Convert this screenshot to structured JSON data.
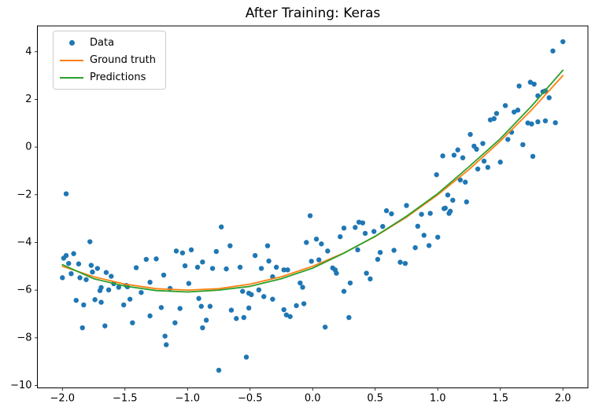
{
  "title": "After Training: Keras",
  "legend": {
    "position": "upper left",
    "items": [
      {
        "label": "Data",
        "type": "marker",
        "color": "#1f77b4"
      },
      {
        "label": "Ground truth",
        "type": "line",
        "color": "#ff7f0e"
      },
      {
        "label": "Predictions",
        "type": "line",
        "color": "#2ca02c"
      }
    ]
  },
  "chart_data": {
    "type": "scatter+line",
    "title": "After Training: Keras",
    "xlabel": "",
    "ylabel": "",
    "grid": false,
    "legend_position": "upper left",
    "axes": {
      "xlim": [
        -2.2,
        2.2
      ],
      "ylim": [
        -10.1,
        5.08
      ],
      "x_tick_values": [
        -2.0,
        -1.5,
        -1.0,
        -0.5,
        0.0,
        0.5,
        1.0,
        1.5,
        2.0
      ],
      "x_tick_labels": [
        "−2.0",
        "−1.5",
        "−1.0",
        "−0.5",
        "0.0",
        "0.5",
        "1.0",
        "1.5",
        "2.0"
      ],
      "y_tick_values": [
        -10,
        -8,
        -6,
        -4,
        -2,
        0,
        2,
        4
      ],
      "y_tick_labels": [
        "−10",
        "−8",
        "−6",
        "−4",
        "−2",
        "0",
        "2",
        "4"
      ]
    },
    "series": [
      {
        "name": "Data",
        "kind": "scatter",
        "color": "#1f77b4",
        "marker_radius": 3.2,
        "points": [
          [
            -1.97,
            -1.96
          ],
          [
            -1.99,
            -4.66
          ],
          [
            -1.97,
            -4.55
          ],
          [
            -1.95,
            -4.88
          ],
          [
            -1.91,
            -4.47
          ],
          [
            -2.0,
            -5.48
          ],
          [
            -1.93,
            -5.31
          ],
          [
            -1.87,
            -4.9
          ],
          [
            -1.86,
            -5.48
          ],
          [
            -1.89,
            -6.43
          ],
          [
            -1.84,
            -7.58
          ],
          [
            -1.83,
            -6.62
          ],
          [
            -1.81,
            -5.56
          ],
          [
            -1.78,
            -3.97
          ],
          [
            -1.77,
            -4.96
          ],
          [
            -1.76,
            -5.24
          ],
          [
            -1.74,
            -6.4
          ],
          [
            -1.72,
            -5.09
          ],
          [
            -1.7,
            -6.02
          ],
          [
            -1.69,
            -6.51
          ],
          [
            -1.69,
            -5.89
          ],
          [
            -1.66,
            -7.5
          ],
          [
            -1.65,
            -5.26
          ],
          [
            -1.63,
            -5.99
          ],
          [
            -1.61,
            -5.42
          ],
          [
            -1.59,
            -5.73
          ],
          [
            -1.55,
            -5.88
          ],
          [
            -1.51,
            -6.62
          ],
          [
            -1.49,
            -5.8
          ],
          [
            -1.48,
            -5.86
          ],
          [
            -1.46,
            -6.38
          ],
          [
            -1.44,
            -7.37
          ],
          [
            -1.41,
            -5.06
          ],
          [
            -1.37,
            -6.1
          ],
          [
            -1.33,
            -4.71
          ],
          [
            -1.3,
            -5.67
          ],
          [
            -1.3,
            -7.08
          ],
          [
            -1.25,
            -4.69
          ],
          [
            -1.21,
            -6.73
          ],
          [
            -1.19,
            -5.37
          ],
          [
            -1.18,
            -7.93
          ],
          [
            -1.17,
            -8.29
          ],
          [
            -1.1,
            -7.37
          ],
          [
            -1.14,
            -5.93
          ],
          [
            -1.09,
            -4.36
          ],
          [
            -1.06,
            -6.77
          ],
          [
            -1.04,
            -4.44
          ],
          [
            -1.02,
            -4.98
          ],
          [
            -0.99,
            -5.72
          ],
          [
            -0.97,
            -4.31
          ],
          [
            -0.92,
            -5.04
          ],
          [
            -0.91,
            -6.35
          ],
          [
            -0.89,
            -6.68
          ],
          [
            -0.88,
            -4.82
          ],
          [
            -0.88,
            -7.58
          ],
          [
            -0.85,
            -7.26
          ],
          [
            -0.82,
            -6.68
          ],
          [
            -0.8,
            -5.09
          ],
          [
            -0.77,
            -4.38
          ],
          [
            -0.75,
            -9.36
          ],
          [
            -0.73,
            -3.35
          ],
          [
            -0.69,
            -5.11
          ],
          [
            -0.66,
            -4.14
          ],
          [
            -0.65,
            -6.84
          ],
          [
            -0.61,
            -7.19
          ],
          [
            -0.58,
            -5.04
          ],
          [
            -0.56,
            -6.05
          ],
          [
            -0.55,
            -7.15
          ],
          [
            -0.53,
            -8.81
          ],
          [
            -0.51,
            -6.13
          ],
          [
            -0.51,
            -6.75
          ],
          [
            -0.49,
            -6.19
          ],
          [
            -0.46,
            -4.55
          ],
          [
            -0.43,
            -5.99
          ],
          [
            -0.41,
            -5.09
          ],
          [
            -0.39,
            -6.27
          ],
          [
            -0.36,
            -4.14
          ],
          [
            -0.35,
            -4.78
          ],
          [
            -0.32,
            -5.44
          ],
          [
            -0.32,
            -6.38
          ],
          [
            -0.29,
            -5.04
          ],
          [
            -0.23,
            -5.15
          ],
          [
            -0.23,
            -6.82
          ],
          [
            -0.21,
            -7.04
          ],
          [
            -0.2,
            -5.15
          ],
          [
            -0.18,
            -7.11
          ],
          [
            -0.13,
            -6.65
          ],
          [
            -0.1,
            -5.7
          ],
          [
            -0.08,
            -5.88
          ],
          [
            -0.07,
            -6.57
          ],
          [
            -0.05,
            -4.0
          ],
          [
            -0.02,
            -2.88
          ],
          [
            -0.01,
            -4.79
          ],
          [
            0.03,
            -3.86
          ],
          [
            0.05,
            -4.73
          ],
          [
            0.07,
            -4.06
          ],
          [
            0.1,
            -7.55
          ],
          [
            0.12,
            -4.36
          ],
          [
            0.16,
            -5.07
          ],
          [
            0.18,
            -5.15
          ],
          [
            0.19,
            -5.29
          ],
          [
            0.22,
            -3.76
          ],
          [
            0.25,
            -3.4
          ],
          [
            0.25,
            -6.05
          ],
          [
            0.29,
            -7.15
          ],
          [
            0.3,
            -5.7
          ],
          [
            0.34,
            -3.37
          ],
          [
            0.36,
            -4.31
          ],
          [
            0.37,
            -3.15
          ],
          [
            0.4,
            -3.18
          ],
          [
            0.42,
            -3.62
          ],
          [
            0.43,
            -5.29
          ],
          [
            0.46,
            -5.53
          ],
          [
            0.49,
            -3.54
          ],
          [
            0.52,
            -4.71
          ],
          [
            0.54,
            -4.42
          ],
          [
            0.56,
            -3.33
          ],
          [
            0.59,
            -2.67
          ],
          [
            0.63,
            -2.8
          ],
          [
            0.65,
            -4.33
          ],
          [
            0.7,
            -4.83
          ],
          [
            0.74,
            -4.88
          ],
          [
            0.75,
            -2.45
          ],
          [
            0.82,
            -4.22
          ],
          [
            0.84,
            -3.32
          ],
          [
            0.87,
            -2.82
          ],
          [
            0.89,
            -3.7
          ],
          [
            0.93,
            -4.13
          ],
          [
            0.94,
            -2.78
          ],
          [
            0.99,
            -1.16
          ],
          [
            1.0,
            -3.78
          ],
          [
            1.04,
            -0.37
          ],
          [
            1.05,
            -2.58
          ],
          [
            1.06,
            -2.56
          ],
          [
            1.08,
            -2.01
          ],
          [
            1.09,
            -2.78
          ],
          [
            1.1,
            -2.69
          ],
          [
            1.12,
            -2.23
          ],
          [
            1.13,
            -0.34
          ],
          [
            1.16,
            -0.12
          ],
          [
            1.18,
            -1.38
          ],
          [
            1.2,
            -0.45
          ],
          [
            1.22,
            -1.47
          ],
          [
            1.23,
            -2.3
          ],
          [
            1.26,
            0.53
          ],
          [
            1.29,
            0.04
          ],
          [
            1.31,
            -0.09
          ],
          [
            1.32,
            -0.92
          ],
          [
            1.36,
            0.15
          ],
          [
            1.37,
            -0.59
          ],
          [
            1.4,
            -0.85
          ],
          [
            1.42,
            1.14
          ],
          [
            1.45,
            1.19
          ],
          [
            1.47,
            1.41
          ],
          [
            1.5,
            -0.63
          ],
          [
            1.54,
            1.74
          ],
          [
            1.56,
            0.32
          ],
          [
            1.59,
            0.62
          ],
          [
            1.61,
            1.47
          ],
          [
            1.64,
            1.55
          ],
          [
            1.65,
            2.56
          ],
          [
            1.68,
            0.1
          ],
          [
            1.72,
            1.01
          ],
          [
            1.74,
            2.72
          ],
          [
            1.75,
            0.97
          ],
          [
            1.76,
            -0.39
          ],
          [
            1.77,
            2.64
          ],
          [
            1.8,
            2.15
          ],
          [
            1.8,
            1.06
          ],
          [
            1.86,
            1.1
          ],
          [
            1.84,
            2.32
          ],
          [
            1.86,
            2.36
          ],
          [
            1.89,
            2.07
          ],
          [
            1.92,
            4.03
          ],
          [
            1.94,
            1.02
          ],
          [
            2.0,
            4.42
          ]
        ]
      },
      {
        "name": "Ground truth",
        "kind": "line",
        "color": "#ff7f0e",
        "stroke_width": 1.8,
        "function": "y = x^2 + 2x - 5",
        "points": [
          [
            -2.0,
            -5.0
          ],
          [
            -1.75,
            -5.44
          ],
          [
            -1.5,
            -5.75
          ],
          [
            -1.25,
            -5.94
          ],
          [
            -1.0,
            -6.0
          ],
          [
            -0.75,
            -5.94
          ],
          [
            -0.5,
            -5.75
          ],
          [
            -0.25,
            -5.44
          ],
          [
            0.0,
            -5.0
          ],
          [
            0.25,
            -4.44
          ],
          [
            0.5,
            -3.75
          ],
          [
            0.75,
            -2.94
          ],
          [
            1.0,
            -2.0
          ],
          [
            1.25,
            -0.94
          ],
          [
            1.5,
            0.25
          ],
          [
            1.75,
            1.56
          ],
          [
            2.0,
            3.0
          ]
        ]
      },
      {
        "name": "Predictions",
        "kind": "line",
        "color": "#2ca02c",
        "stroke_width": 1.8,
        "points": [
          [
            -2.0,
            -4.93
          ],
          [
            -1.75,
            -5.52
          ],
          [
            -1.5,
            -5.83
          ],
          [
            -1.25,
            -6.02
          ],
          [
            -1.0,
            -6.08
          ],
          [
            -0.75,
            -6.0
          ],
          [
            -0.5,
            -5.84
          ],
          [
            -0.25,
            -5.52
          ],
          [
            0.0,
            -5.08
          ],
          [
            0.25,
            -4.45
          ],
          [
            0.5,
            -3.74
          ],
          [
            0.75,
            -2.9
          ],
          [
            1.0,
            -1.95
          ],
          [
            1.25,
            -0.82
          ],
          [
            1.5,
            0.35
          ],
          [
            1.75,
            1.72
          ],
          [
            2.0,
            3.22
          ]
        ]
      }
    ]
  }
}
